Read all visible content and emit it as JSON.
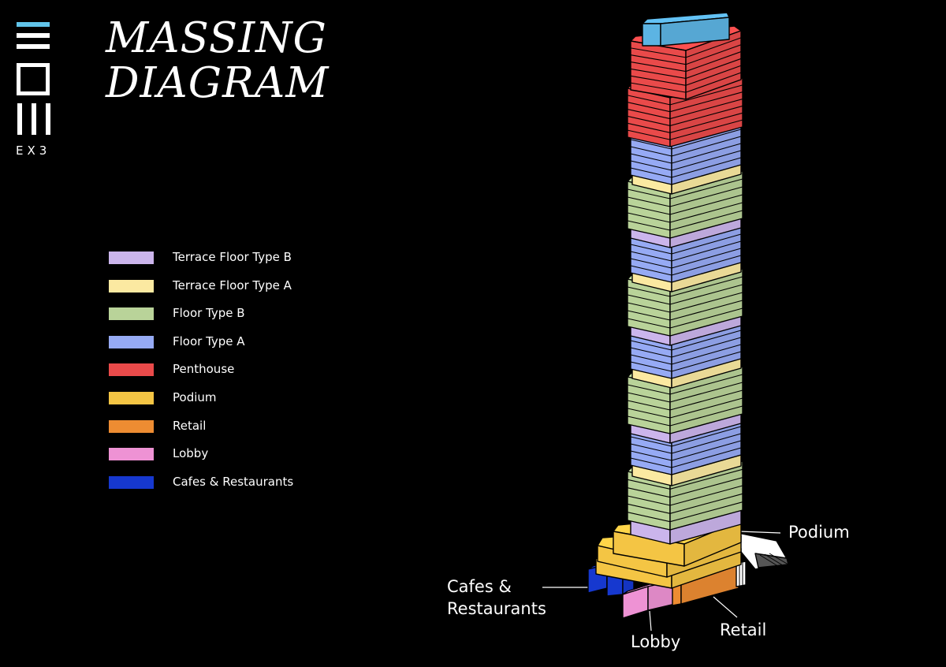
{
  "logo": {
    "text": "EX3"
  },
  "title": {
    "line1": "MASSING",
    "line2": "DIAGRAM"
  },
  "colors": {
    "terrace_b": "#cbb5ec",
    "terrace_a": "#fbe9a1",
    "floor_b": "#b9d399",
    "floor_a": "#96aaf4",
    "penthouse": "#e94a4a",
    "podium": "#f4c544",
    "retail": "#ed8c32",
    "lobby": "#ee92d4",
    "cafes": "#1638cf",
    "roof": "#5cb4e3",
    "logo_accent": "#61c4ea"
  },
  "legend": [
    {
      "label": "Terrace Floor Type B",
      "color": "#cbb5ec"
    },
    {
      "label": "Terrace Floor Type A",
      "color": "#fbe9a1"
    },
    {
      "label": "Floor Type B",
      "color": "#b9d399"
    },
    {
      "label": "Floor Type A",
      "color": "#96aaf4"
    },
    {
      "label": "Penthouse",
      "color": "#e94a4a"
    },
    {
      "label": "Podium",
      "color": "#f4c544"
    },
    {
      "label": "Retail",
      "color": "#ed8c32"
    },
    {
      "label": "Lobby",
      "color": "#ee92d4"
    },
    {
      "label": "Cafes & Restaurants",
      "color": "#1638cf"
    }
  ],
  "callouts": {
    "podium": "Podium",
    "cafes_line1": "Cafes &",
    "cafes_line2": "Restaurants",
    "lobby": "Lobby",
    "retail": "Retail"
  }
}
